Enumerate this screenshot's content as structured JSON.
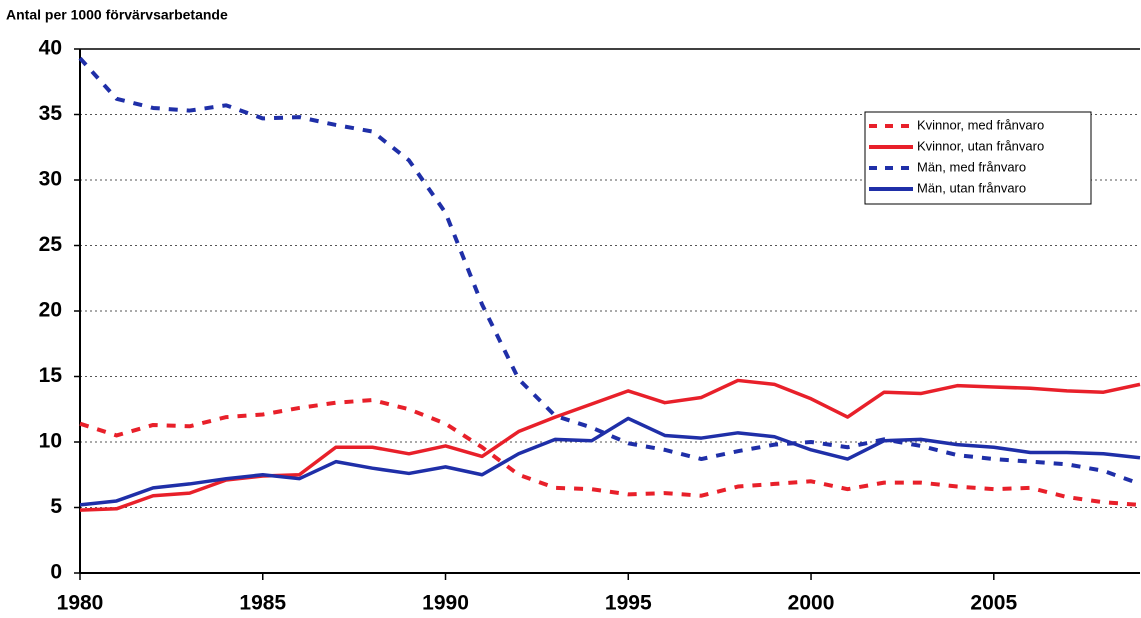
{
  "chart_data": {
    "type": "line",
    "title": "Antal per 1000 förvärvsarbetande",
    "x": [
      1980,
      1981,
      1982,
      1983,
      1984,
      1985,
      1986,
      1987,
      1988,
      1989,
      1990,
      1991,
      1992,
      1993,
      1994,
      1995,
      1996,
      1997,
      1998,
      1999,
      2000,
      2001,
      2002,
      2003,
      2004,
      2005,
      2006,
      2007,
      2008,
      2009
    ],
    "series": [
      {
        "name": "Kvinnor, med frånvaro",
        "color": "#e8202a",
        "dashed": true,
        "values": [
          11.4,
          10.5,
          11.3,
          11.2,
          11.9,
          12.1,
          12.6,
          13.0,
          13.2,
          12.5,
          11.4,
          9.6,
          7.5,
          6.5,
          6.4,
          6.0,
          6.1,
          5.9,
          6.6,
          6.8,
          7.0,
          6.4,
          6.9,
          6.9,
          6.6,
          6.4,
          6.5,
          5.8,
          5.4,
          5.2
        ]
      },
      {
        "name": "Kvinnor, utan frånvaro",
        "color": "#e8202a",
        "dashed": false,
        "values": [
          4.8,
          4.9,
          5.9,
          6.1,
          7.1,
          7.4,
          7.5,
          9.6,
          9.6,
          9.1,
          9.7,
          8.9,
          10.8,
          11.9,
          12.9,
          13.9,
          13.0,
          13.4,
          14.7,
          14.4,
          13.3,
          11.9,
          13.8,
          13.7,
          14.3,
          14.2,
          14.1,
          13.9,
          13.8,
          14.4
        ]
      },
      {
        "name": "Män, med frånvaro",
        "color": "#1f2fa8",
        "dashed": true,
        "values": [
          39.3,
          36.2,
          35.5,
          35.3,
          35.7,
          34.7,
          34.8,
          34.2,
          33.7,
          31.5,
          27.5,
          20.5,
          14.8,
          12.0,
          11.1,
          9.9,
          9.4,
          8.7,
          9.3,
          9.8,
          10.0,
          9.6,
          10.2,
          9.7,
          9.0,
          8.7,
          8.5,
          8.3,
          7.8,
          6.8
        ]
      },
      {
        "name": "Män, utan frånvaro",
        "color": "#1f2fa8",
        "dashed": false,
        "values": [
          5.2,
          5.5,
          6.5,
          6.8,
          7.2,
          7.5,
          7.2,
          8.5,
          8.0,
          7.6,
          8.1,
          7.5,
          9.1,
          10.2,
          10.1,
          11.8,
          10.5,
          10.3,
          10.7,
          10.4,
          9.4,
          8.7,
          10.1,
          10.2,
          9.8,
          9.6,
          9.2,
          9.2,
          9.1,
          8.8
        ]
      }
    ],
    "xlim": [
      1980,
      2009
    ],
    "xticks": [
      1980,
      1985,
      1990,
      1995,
      2000,
      2005
    ],
    "ylim": [
      0,
      40
    ],
    "yticks": [
      0,
      5,
      10,
      15,
      20,
      25,
      30,
      35,
      40
    ],
    "grid": true,
    "legend": "upper right"
  }
}
